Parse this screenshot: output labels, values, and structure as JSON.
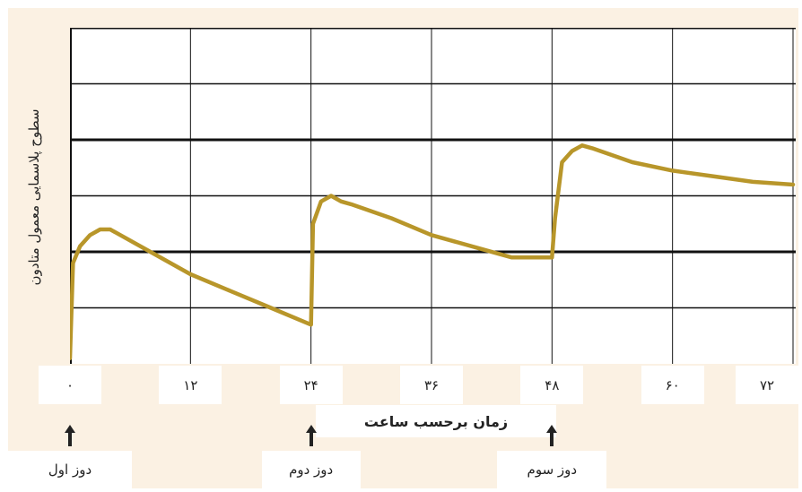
{
  "chart_data": {
    "type": "line",
    "ylabel": "سطوح پلاسمایی معمول متادون",
    "xlabel": "زمان برحسب ساعت",
    "x_ticks": [
      {
        "value": 0,
        "label": "۰"
      },
      {
        "value": 12,
        "label": "۱۲"
      },
      {
        "value": 24,
        "label": "۲۴"
      },
      {
        "value": 36,
        "label": "۳۶"
      },
      {
        "value": 48,
        "label": "۴۸"
      },
      {
        "value": 60,
        "label": "۶۰"
      },
      {
        "value": 72,
        "label": "۷۲"
      }
    ],
    "xlim": [
      0,
      72
    ],
    "ylim": [
      0,
      6
    ],
    "y_ticks_labeled": false,
    "grid": true,
    "series": [
      {
        "color": "#b8962a",
        "x": [
          0,
          0.3,
          1,
          2,
          3,
          4,
          8,
          12,
          16,
          20,
          24,
          24.2,
          25,
          26,
          27,
          28,
          32,
          36,
          40,
          44,
          48,
          48.3,
          49,
          50,
          51,
          52,
          56,
          60,
          64,
          68,
          72
        ],
        "y": [
          0.1,
          1.8,
          2.1,
          2.3,
          2.4,
          2.4,
          2.0,
          1.6,
          1.3,
          1.0,
          0.7,
          2.5,
          2.9,
          3.0,
          2.9,
          2.85,
          2.6,
          2.3,
          2.1,
          1.9,
          1.9,
          2.6,
          3.6,
          3.8,
          3.9,
          3.85,
          3.6,
          3.45,
          3.35,
          3.25,
          3.2
        ]
      }
    ]
  },
  "doses": [
    {
      "label": "دوز اول",
      "x": 0
    },
    {
      "label": "دوز دوم",
      "x": 24
    },
    {
      "label": "دوز سوم",
      "x": 48
    }
  ]
}
